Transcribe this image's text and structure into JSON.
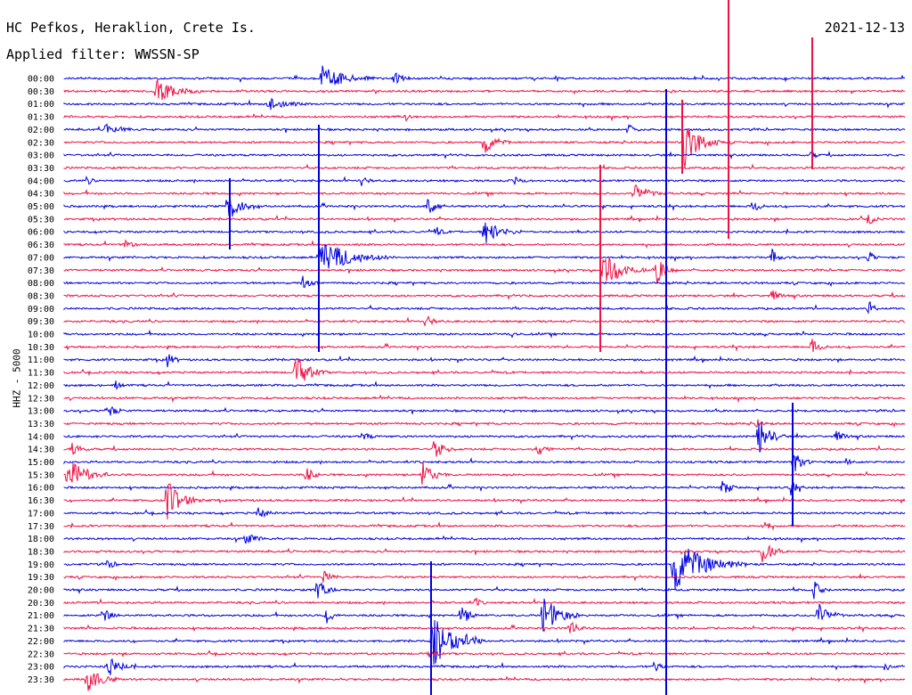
{
  "header": {
    "station": "HC Pefkos, Heraklion, Crete Is.",
    "filter": "Applied filter: WWSSN-SP",
    "date": "2021-12-13"
  },
  "chart_data": {
    "type": "line",
    "title": "HC Pefkos, Heraklion, Crete Is.",
    "subtitle": "Applied filter: WWSSN-SP",
    "date": "2021-12-13",
    "ylabel": "HHZ - 5000",
    "categories": [
      "00:00",
      "00:30",
      "01:00",
      "01:30",
      "02:00",
      "02:30",
      "03:00",
      "03:30",
      "04:00",
      "04:30",
      "05:00",
      "05:30",
      "06:00",
      "06:30",
      "07:00",
      "07:30",
      "08:00",
      "08:30",
      "09:00",
      "09:30",
      "10:00",
      "10:30",
      "11:00",
      "11:30",
      "12:00",
      "12:30",
      "13:00",
      "13:30",
      "14:00",
      "14:30",
      "15:00",
      "15:30",
      "16:00",
      "16:30",
      "17:00",
      "17:30",
      "18:00",
      "18:30",
      "19:00",
      "19:30",
      "20:00",
      "20:30",
      "21:00",
      "21:30",
      "22:00",
      "22:30",
      "23:00",
      "23:30"
    ],
    "colors": [
      "#0000e0",
      "#ee1144"
    ],
    "grid": false
  }
}
